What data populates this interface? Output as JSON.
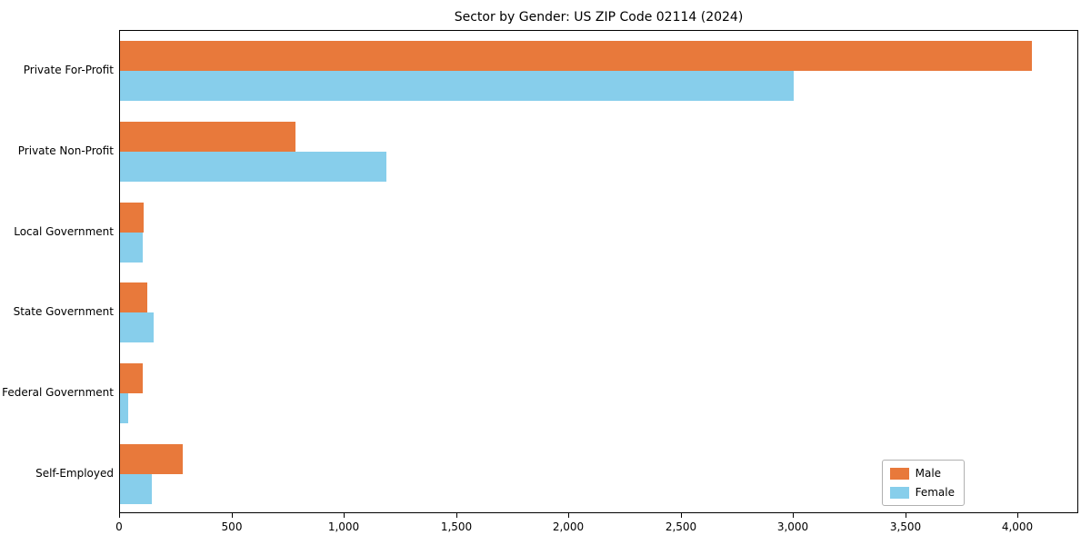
{
  "chart_data": {
    "type": "bar",
    "orientation": "horizontal",
    "title": "Sector by Gender: US ZIP Code 02114 (2024)",
    "categories": [
      "Private For-Profit",
      "Private Non-Profit",
      "Local Government",
      "State Government",
      "Federal Government",
      "Self-Employed"
    ],
    "series": [
      {
        "name": "Male",
        "color": "#e8793b",
        "values": [
          4060,
          780,
          105,
          120,
          100,
          280
        ]
      },
      {
        "name": "Female",
        "color": "#87ceeb",
        "values": [
          3000,
          1185,
          100,
          150,
          35,
          140
        ]
      }
    ],
    "xlim": [
      0,
      4270
    ],
    "xticks": [
      0,
      500,
      1000,
      1500,
      2000,
      2500,
      3000,
      3500,
      4000
    ],
    "xtick_labels": [
      "0",
      "500",
      "1,000",
      "1,500",
      "2,000",
      "2,500",
      "3,000",
      "3,500",
      "4,000"
    ],
    "xlabel": "",
    "ylabel": "",
    "grid": false,
    "legend_position": "lower right"
  }
}
